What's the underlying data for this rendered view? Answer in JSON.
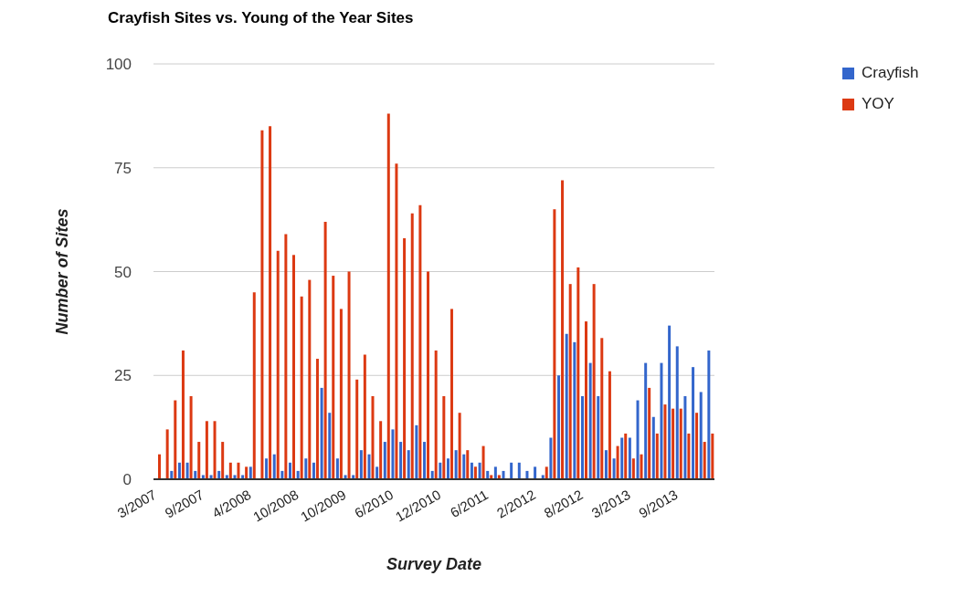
{
  "chart_data": {
    "type": "bar",
    "title": "Crayfish Sites vs. Young of the Year Sites",
    "xlabel": "Survey Date",
    "ylabel": "Number of Sites",
    "categories": [
      "3/2007",
      null,
      null,
      null,
      null,
      null,
      "9/2007",
      null,
      null,
      null,
      null,
      null,
      "4/2008",
      null,
      null,
      null,
      null,
      null,
      "10/2008",
      null,
      null,
      null,
      null,
      null,
      "10/2009",
      null,
      null,
      null,
      null,
      null,
      "6/2010",
      null,
      null,
      null,
      null,
      null,
      "12/2010",
      null,
      null,
      null,
      null,
      null,
      "6/2011",
      null,
      null,
      null,
      null,
      null,
      "2/2012",
      null,
      null,
      null,
      null,
      null,
      "8/2012",
      null,
      null,
      null,
      null,
      null,
      "3/2013",
      null,
      null,
      null,
      null,
      null,
      "9/2013",
      null,
      null,
      null,
      null
    ],
    "series": [
      {
        "name": "Crayfish",
        "color": "#3366cc",
        "values": [
          0,
          0,
          2,
          4,
          4,
          2,
          1,
          1,
          2,
          1,
          1,
          1,
          3,
          0,
          5,
          6,
          2,
          4,
          2,
          5,
          4,
          22,
          16,
          5,
          1,
          1,
          7,
          6,
          3,
          9,
          12,
          9,
          7,
          13,
          9,
          2,
          4,
          5,
          7,
          6,
          4,
          4,
          2,
          3,
          2,
          4,
          4,
          2,
          3,
          1,
          10,
          25,
          35,
          33,
          20,
          28,
          20,
          7,
          5,
          10,
          10,
          19,
          28,
          15,
          28,
          37,
          32,
          20,
          27,
          21,
          31
        ]
      },
      {
        "name": "YOY",
        "color": "#dc3912",
        "values": [
          6,
          12,
          19,
          31,
          20,
          9,
          14,
          14,
          9,
          4,
          4,
          3,
          45,
          84,
          85,
          55,
          59,
          54,
          44,
          48,
          29,
          62,
          49,
          41,
          50,
          24,
          30,
          20,
          14,
          88,
          76,
          58,
          64,
          66,
          50,
          31,
          20,
          41,
          16,
          7,
          3,
          8,
          1,
          1,
          0,
          0,
          0,
          0,
          0,
          3,
          65,
          72,
          47,
          51,
          38,
          47,
          34,
          26,
          8,
          11,
          5,
          6,
          22,
          11,
          18,
          17,
          17,
          11,
          16,
          9,
          11
        ]
      }
    ],
    "ylim": [
      0,
      100
    ],
    "yticks": [
      0,
      25,
      50,
      75,
      100
    ],
    "grid": "y",
    "legend": "top right"
  }
}
